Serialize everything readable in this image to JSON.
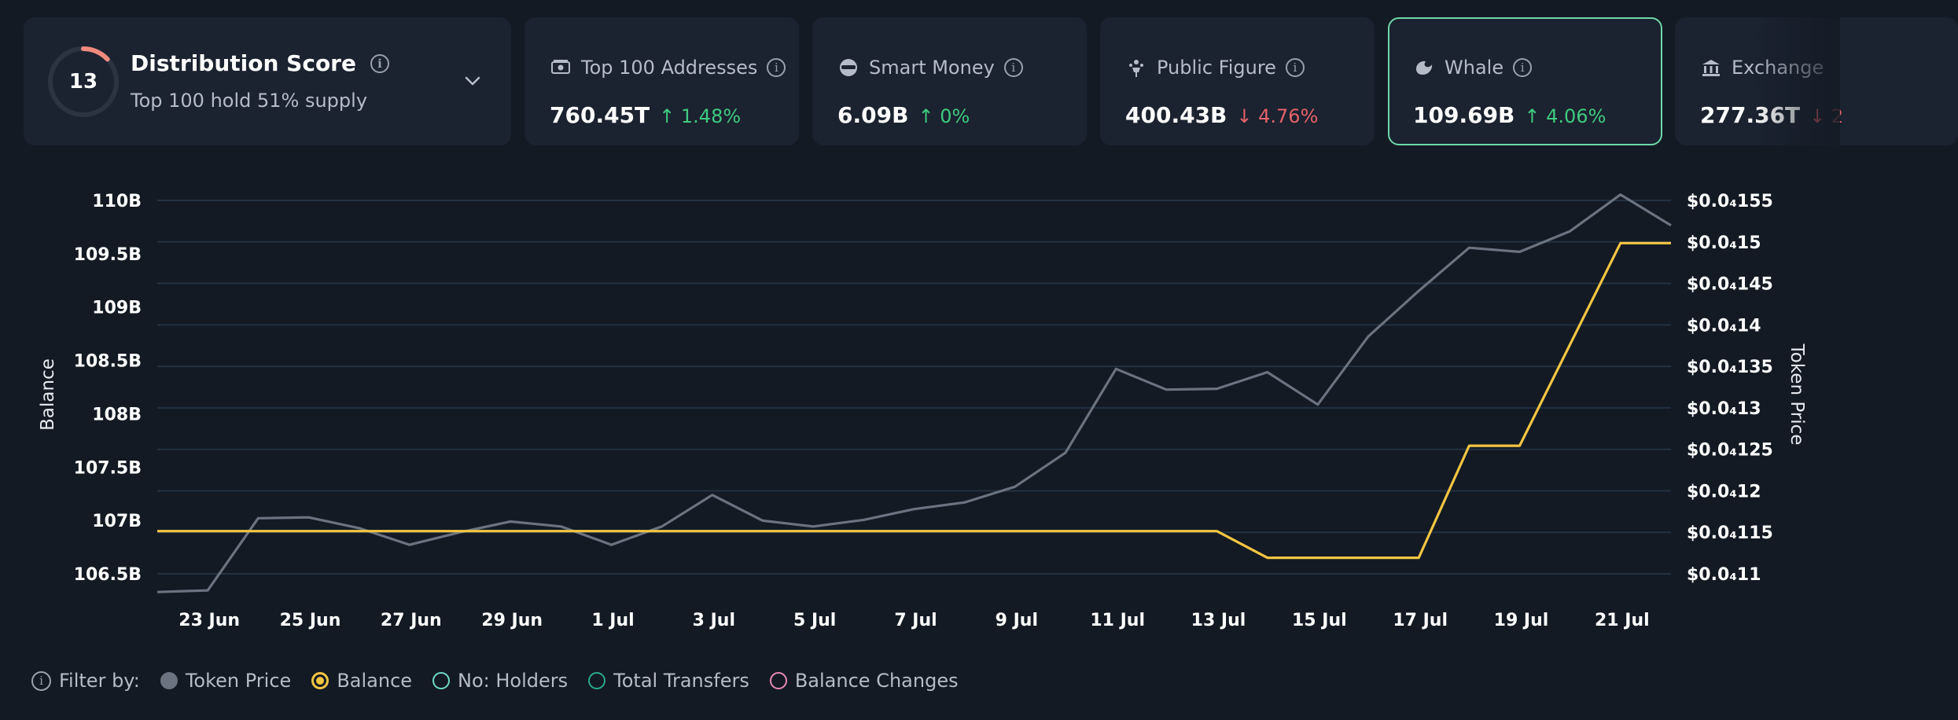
{
  "distribution": {
    "score": "13",
    "score_fraction": 0.13,
    "title": "Distribution Score",
    "subtitle": "Top 100 hold 51% supply"
  },
  "stats": [
    {
      "label": "Top 100 Addresses",
      "value": "760.45T",
      "change": "1.48%",
      "direction": "up",
      "icon": "money-icon"
    },
    {
      "label": "Smart Money",
      "value": "6.09B",
      "change": "0%",
      "direction": "up",
      "icon": "spy-icon"
    },
    {
      "label": "Public Figure",
      "value": "400.43B",
      "change": "4.76%",
      "direction": "down",
      "icon": "figure-icon"
    },
    {
      "label": "Whale",
      "value": "109.69B",
      "change": "4.06%",
      "direction": "up",
      "icon": "whale-icon",
      "selected": true
    },
    {
      "label": "Exchange",
      "value": "277.36T",
      "change": "2",
      "direction": "down",
      "icon": "bank-icon"
    }
  ],
  "colors": {
    "up": "#3fca7f",
    "down": "#e5626a",
    "balance": "#f5c542",
    "price": "#6b7380",
    "grid": "#233142",
    "selected_border": "#6ed7a9"
  },
  "legend": {
    "filter_label": "Filter by:",
    "items": [
      {
        "label": "Token Price",
        "color": "#6b7380",
        "style": "filled"
      },
      {
        "label": "Balance",
        "color": "#f5c542",
        "style": "ring-dot"
      },
      {
        "label": "No: Holders",
        "color": "#6ed7c5",
        "style": "ring"
      },
      {
        "label": "Total Transfers",
        "color": "#2aa88a",
        "style": "ring"
      },
      {
        "label": "Balance Changes",
        "color": "#e889b8",
        "style": "ring"
      }
    ]
  },
  "chart_data": {
    "type": "line",
    "left_axis_label": "Balance",
    "right_axis_label": "Token Price",
    "left_ylim": [
      106.5,
      110
    ],
    "left_ticks": [
      "106.5B",
      "107B",
      "107.5B",
      "108B",
      "108.5B",
      "109B",
      "109.5B",
      "110B"
    ],
    "left_tick_values": [
      106.5,
      107,
      107.5,
      108,
      108.5,
      109,
      109.5,
      110
    ],
    "right_ylim": [
      0.11,
      0.155
    ],
    "right_ticks": [
      "$0.0₄11",
      "$0.0₄115",
      "$0.0₄12",
      "$0.0₄125",
      "$0.0₄13",
      "$0.0₄135",
      "$0.0₄14",
      "$0.0₄145",
      "$0.0₄15",
      "$0.0₄155"
    ],
    "right_tick_values": [
      0.11,
      0.115,
      0.12,
      0.125,
      0.13,
      0.135,
      0.14,
      0.145,
      0.15,
      0.155
    ],
    "x_range": [
      0,
      30
    ],
    "x_ticks": [
      "23 Jun",
      "25 Jun",
      "27 Jun",
      "29 Jun",
      "1 Jul",
      "3 Jul",
      "5 Jul",
      "7 Jul",
      "9 Jul",
      "11 Jul",
      "13 Jul",
      "15 Jul",
      "17 Jul",
      "19 Jul",
      "21 Jul"
    ],
    "x_tick_values": [
      1,
      3,
      5,
      7,
      9,
      11,
      13,
      15,
      17,
      19,
      21,
      23,
      25,
      27,
      29
    ],
    "series": [
      {
        "name": "Token Price",
        "axis": "right",
        "x": [
          0,
          1,
          2,
          3,
          4,
          5,
          6,
          7,
          8,
          9,
          10,
          11,
          12,
          13,
          14,
          15,
          16,
          17,
          18,
          19,
          20,
          21,
          22,
          23,
          24,
          25,
          26,
          27,
          28,
          29,
          30
        ],
        "values": [
          0.1078,
          0.108,
          0.1167,
          0.1168,
          0.1155,
          0.1135,
          0.115,
          0.1163,
          0.1157,
          0.1135,
          0.1157,
          0.1195,
          0.1164,
          0.1157,
          0.1165,
          0.1178,
          0.1186,
          0.1205,
          0.1246,
          0.1347,
          0.1322,
          0.1323,
          0.1343,
          0.1304,
          0.1386,
          0.1441,
          0.1493,
          0.1488,
          0.1513,
          0.1557,
          0.152
        ]
      },
      {
        "name": "Balance",
        "axis": "left",
        "x": [
          0,
          21,
          22,
          25,
          26,
          27,
          29,
          30
        ],
        "values": [
          106.9,
          106.9,
          106.65,
          106.65,
          107.7,
          107.7,
          109.6,
          109.6
        ]
      }
    ]
  }
}
